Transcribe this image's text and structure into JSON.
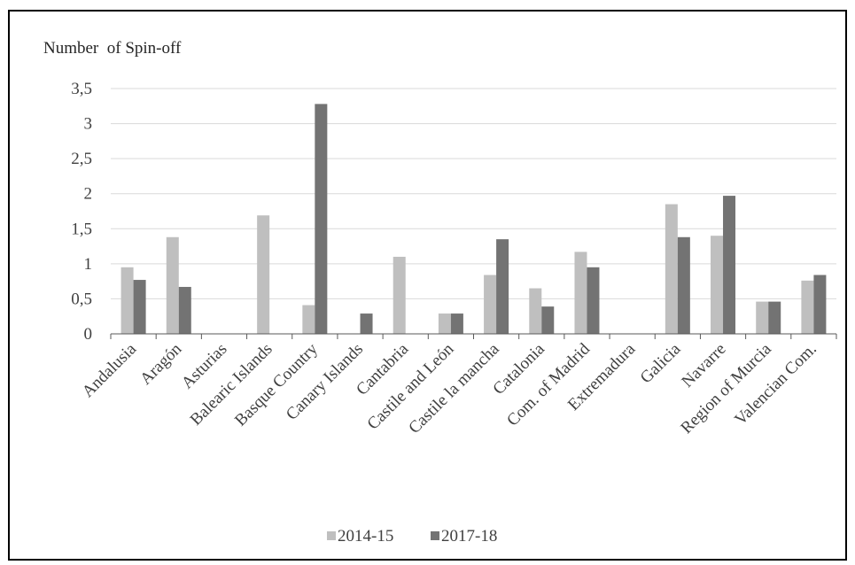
{
  "chart_data": {
    "type": "bar",
    "title": "",
    "xlabel": "",
    "ylabel": "Number  of Spin-off",
    "ylim": [
      0,
      3.5
    ],
    "yticks": [
      "0",
      "0,5",
      "1",
      "1,5",
      "2",
      "2,5",
      "3",
      "3,5"
    ],
    "grid": true,
    "legend_position": "bottom",
    "categories": [
      "Andalusia",
      "Aragón",
      "Asturias",
      "Balearic Islands",
      "Basque Country",
      "Canary Islands",
      "Cantabria",
      "Castile and León",
      "Castile la mancha",
      "Catalonia",
      "Com. of Madrid",
      "Extremadura",
      "Galicia",
      "Navarre",
      "Region of Murcia",
      "Valencian Com."
    ],
    "series": [
      {
        "name": "2014-15",
        "color": "#bfbfbf",
        "values": [
          0.95,
          1.38,
          0,
          1.69,
          0.41,
          0,
          1.1,
          0.29,
          0.84,
          0.65,
          1.17,
          0,
          1.85,
          1.4,
          0.46,
          0.76
        ]
      },
      {
        "name": "2017-18",
        "color": "#737373",
        "values": [
          0.77,
          0.67,
          0,
          0,
          3.28,
          0.29,
          0,
          0.29,
          1.35,
          0.39,
          0.95,
          0,
          1.38,
          1.97,
          0.46,
          0.84
        ]
      }
    ]
  }
}
